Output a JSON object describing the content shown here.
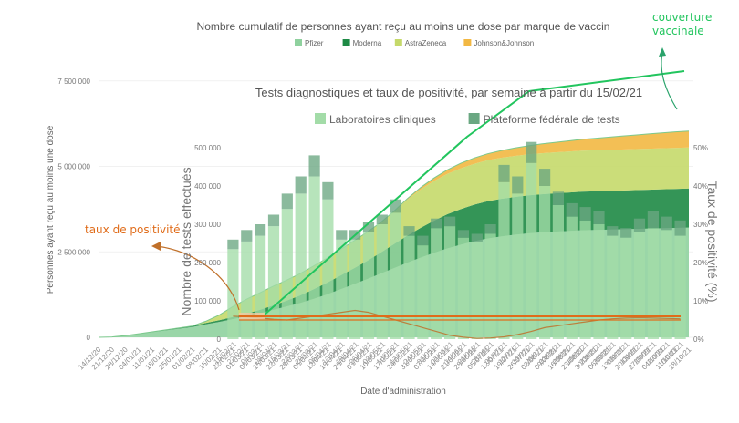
{
  "chart_data": [
    {
      "type": "area",
      "title": "Nombre cumulatif de personnes ayant reçu au moins une dose par marque de vaccin",
      "xlabel": "Date d'administration",
      "ylabel": "Personnes ayant reçu au moins une dose",
      "ylim": [
        0,
        8000000
      ],
      "yticks": [
        "0",
        "2 500 000",
        "5 000 000",
        "7 500 000"
      ],
      "ytick_values": [
        0,
        2500000,
        5000000,
        7500000
      ],
      "x_labels": [
        "14/12/20",
        "21/12/20",
        "28/12/20",
        "04/01/21",
        "11/01/21",
        "18/01/21",
        "25/01/21",
        "01/02/21",
        "08/02/21",
        "15/02/21",
        "22/02/21",
        "01/03/21",
        "08/03/21",
        "15/03/21",
        "22/03/21",
        "29/03/21",
        "05/04/21",
        "12/04/21",
        "19/04/21",
        "26/04/21",
        "03/05/21",
        "10/05/21",
        "17/05/21",
        "24/05/21",
        "31/05/21",
        "07/06/21",
        "14/06/21",
        "21/06/21",
        "28/06/21",
        "05/07/21",
        "12/07/21",
        "19/07/21",
        "26/07/21",
        "02/08/21",
        "09/08/21",
        "16/08/21",
        "23/08/21",
        "30/08/21",
        "06/09/21",
        "13/09/21",
        "20/09/21",
        "27/09/21",
        "04/10/21",
        "11/10/21",
        "18/10/21"
      ],
      "legend": [
        "Pfizer",
        "Moderna",
        "AstraZeneca",
        "Johnson&Johnson"
      ],
      "colors": [
        "#8fd19e",
        "#1e8a45",
        "#c5d96a",
        "#f2b843"
      ],
      "series": [
        {
          "name": "Pfizer",
          "values": [
            0,
            10000,
            50000,
            100000,
            150000,
            200000,
            250000,
            300000,
            380000,
            450000,
            530000,
            610000,
            700000,
            800000,
            900000,
            1000000,
            1120000,
            1250000,
            1400000,
            1550000,
            1700000,
            1860000,
            2020000,
            2180000,
            2330000,
            2470000,
            2600000,
            2710000,
            2810000,
            2890000,
            2950000,
            3000000,
            3040000,
            3070000,
            3090000,
            3110000,
            3130000,
            3140000,
            3150000,
            3160000,
            3170000,
            3180000,
            3190000,
            3200000,
            3210000
          ]
        },
        {
          "name": "Moderna",
          "values": [
            0,
            0,
            0,
            5000,
            10000,
            15000,
            22000,
            30000,
            40000,
            52000,
            65000,
            80000,
            100000,
            130000,
            170000,
            220000,
            280000,
            340000,
            400000,
            460000,
            530000,
            610000,
            700000,
            790000,
            870000,
            940000,
            1000000,
            1040000,
            1070000,
            1090000,
            1100000,
            1105000,
            1110000,
            1115000,
            1120000,
            1125000,
            1128000,
            1130000,
            1132000,
            1134000,
            1136000,
            1138000,
            1140000,
            1142000,
            1144000
          ]
        },
        {
          "name": "AstraZeneca",
          "values": [
            0,
            0,
            0,
            0,
            0,
            0,
            0,
            0,
            50000,
            150000,
            300000,
            420000,
            500000,
            560000,
            600000,
            640000,
            680000,
            720000,
            760000,
            800000,
            840000,
            880000,
            950000,
            1050000,
            1120000,
            1160000,
            1180000,
            1190000,
            1195000,
            1198000,
            1200000,
            1200000,
            1200000,
            1200000,
            1200000,
            1200000,
            1200000,
            1200000,
            1200000,
            1200000,
            1200000,
            1200000,
            1200000,
            1200000,
            1200000
          ]
        },
        {
          "name": "Johnson&Johnson",
          "values": [
            0,
            0,
            0,
            0,
            0,
            0,
            0,
            0,
            0,
            0,
            0,
            0,
            0,
            0,
            0,
            0,
            0,
            0,
            0,
            0,
            0,
            0,
            10000,
            30000,
            60000,
            90000,
            120000,
            150000,
            170000,
            190000,
            210000,
            230000,
            250000,
            270000,
            290000,
            310000,
            330000,
            350000,
            370000,
            390000,
            410000,
            430000,
            450000,
            470000,
            480000
          ]
        }
      ]
    },
    {
      "type": "bar",
      "title": "Tests diagnostiques et taux de positivité, par semaine à partir du 15/02/21",
      "ylabel": "Nombre de tests effectués",
      "ylim": [
        0,
        600000
      ],
      "yticks": [
        "0",
        "100 000",
        "200 000",
        "300 000",
        "400 000",
        "500 000"
      ],
      "ytick_values": [
        0,
        100000,
        200000,
        300000,
        400000,
        500000
      ],
      "y2label": "Taux de positivité (%)",
      "y2lim": [
        0,
        0.6
      ],
      "y2ticks": [
        "0%",
        "10%",
        "20%",
        "30%",
        "40%",
        "50%"
      ],
      "y2tick_values": [
        0,
        0.1,
        0.2,
        0.3,
        0.4,
        0.5
      ],
      "categories": [
        "15/02/21",
        "22/02/21",
        "01/03/21",
        "08/03/21",
        "15/03/21",
        "22/03/21",
        "29/03/21",
        "05/04/21",
        "12/04/21",
        "19/04/21",
        "26/04/21",
        "03/05/21",
        "10/05/21",
        "17/05/21",
        "24/05/21",
        "31/05/21",
        "07/06/21",
        "14/06/21",
        "21/06/21",
        "28/06/21",
        "05/07/21",
        "12/07/21",
        "19/07/21",
        "26/07/21",
        "02/08/21",
        "09/08/21",
        "16/08/21",
        "23/08/21",
        "30/08/21",
        "06/09/21",
        "13/09/21",
        "20/09/21",
        "27/09/21",
        "04/10/21"
      ],
      "legend": [
        "Laboratoires cliniques",
        "Plateforme fédérale de tests"
      ],
      "colors": [
        "#a3dca8",
        "#6aa782"
      ],
      "series": [
        {
          "name": "Laboratoires cliniques",
          "values": [
            235000,
            255000,
            270000,
            295000,
            340000,
            380000,
            425000,
            365000,
            260000,
            260000,
            280000,
            300000,
            330000,
            270000,
            245000,
            290000,
            295000,
            265000,
            255000,
            275000,
            410000,
            380000,
            460000,
            400000,
            350000,
            320000,
            310000,
            300000,
            270000,
            265000,
            280000,
            290000,
            285000,
            270000
          ]
        },
        {
          "name": "Plateforme fédérale de tests",
          "values": [
            25000,
            30000,
            30000,
            30000,
            40000,
            45000,
            55000,
            45000,
            25000,
            25000,
            25000,
            25000,
            35000,
            25000,
            25000,
            25000,
            25000,
            20000,
            20000,
            25000,
            45000,
            45000,
            55000,
            45000,
            35000,
            35000,
            35000,
            35000,
            25000,
            25000,
            35000,
            45000,
            35000,
            40000
          ]
        }
      ],
      "positivity_rate": [
        0.06,
        0.058,
        0.055,
        0.052,
        0.05,
        0.055,
        0.06,
        0.065,
        0.07,
        0.075,
        0.07,
        0.06,
        0.05,
        0.04,
        0.03,
        0.02,
        0.01,
        0.005,
        0.002,
        0.003,
        0.006,
        0.012,
        0.02,
        0.03,
        0.035,
        0.04,
        0.045,
        0.05,
        0.053,
        0.055,
        0.056,
        0.055,
        0.054,
        0.053
      ]
    }
  ],
  "annotations": {
    "coverage_label_line1": "couverture",
    "coverage_label_line2": "vaccinale",
    "positivity_label": "taux de positivité",
    "coverage_color": "#22c55e",
    "positivity_color": "#e06c1a"
  }
}
